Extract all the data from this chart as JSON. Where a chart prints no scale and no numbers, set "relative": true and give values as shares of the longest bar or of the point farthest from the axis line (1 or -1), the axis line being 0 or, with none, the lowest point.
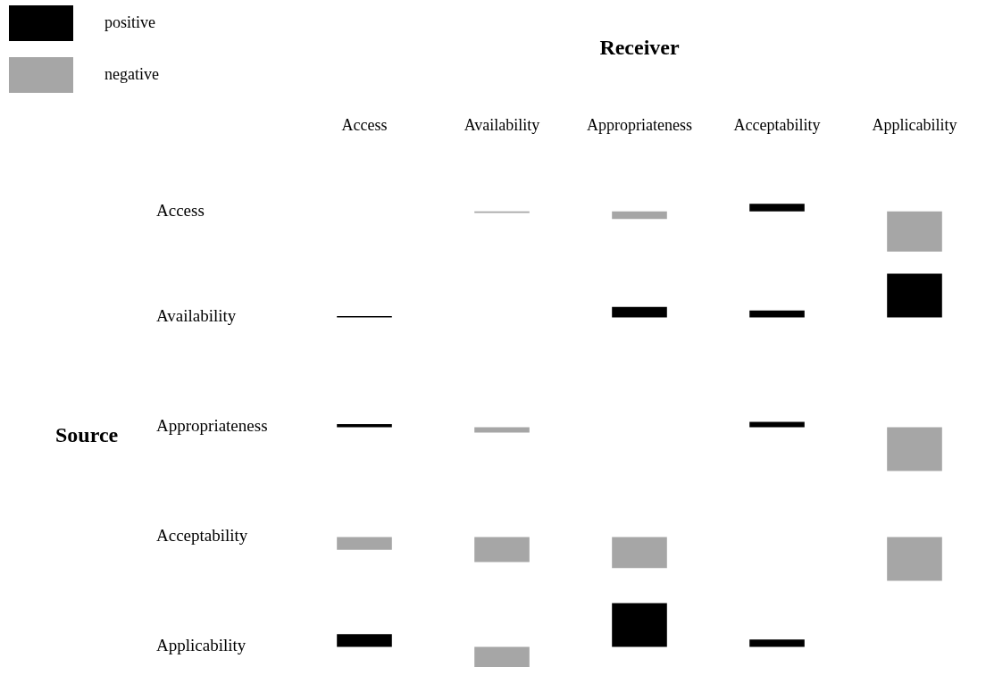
{
  "chart_data": [
    {
      "type": "bar",
      "title": "Receiver",
      "ylabel": "Access",
      "categories": [
        "Access",
        "Availability",
        "Appropriateness",
        "Acceptability",
        "Applicability"
      ],
      "stacked": true,
      "relative": true,
      "legend": "top left",
      "tick_labels": "x",
      "series": [
        {
          "name": "positive",
          "color": "#000000",
          "values": [
            null,
            null,
            null,
            0.19,
            null
          ]
        },
        {
          "name": "negative",
          "color": "#a6a6a6",
          "values": [
            null,
            -0.04,
            -0.19,
            null,
            -1
          ]
        }
      ]
    },
    {
      "type": "bar",
      "ylabel": "Availability",
      "categories": [
        null,
        null,
        null,
        null,
        null
      ],
      "stacked": true,
      "relative": true,
      "tick_labels": false,
      "series": [
        {
          "color": "#000000",
          "values": [
            0.03,
            null,
            0.24,
            0.16,
            1
          ]
        }
      ]
    },
    {
      "type": "bar",
      "ylabel": "Appropriateness",
      "annotations": [
        "Source"
      ],
      "categories": [
        null,
        null,
        null,
        null,
        null
      ],
      "stacked": true,
      "relative": true,
      "tick_labels": false,
      "series": [
        {
          "color": "#000000",
          "values": [
            0.07,
            null,
            null,
            0.12,
            null
          ]
        },
        {
          "color": "#a6a6a6",
          "values": [
            null,
            -0.12,
            null,
            null,
            -1
          ]
        }
      ]
    },
    {
      "type": "bar",
      "ylabel": "Acceptability",
      "categories": [
        null,
        null,
        null,
        null,
        null
      ],
      "stacked": true,
      "relative": true,
      "tick_labels": false,
      "series": [
        {
          "color": "#a6a6a6",
          "values": [
            -0.29,
            -0.57,
            -0.71,
            null,
            -1
          ]
        }
      ]
    },
    {
      "type": "bar",
      "ylabel": "Applicability",
      "categories": [
        null,
        null,
        null,
        null,
        null
      ],
      "stacked": true,
      "relative": true,
      "tick_labels": false,
      "series": [
        {
          "color": "#000000",
          "values": [
            0.29,
            null,
            1,
            0.17,
            null
          ]
        },
        {
          "color": "#a6a6a6",
          "values": [
            null,
            -0.46,
            null,
            null,
            null
          ]
        }
      ]
    }
  ]
}
